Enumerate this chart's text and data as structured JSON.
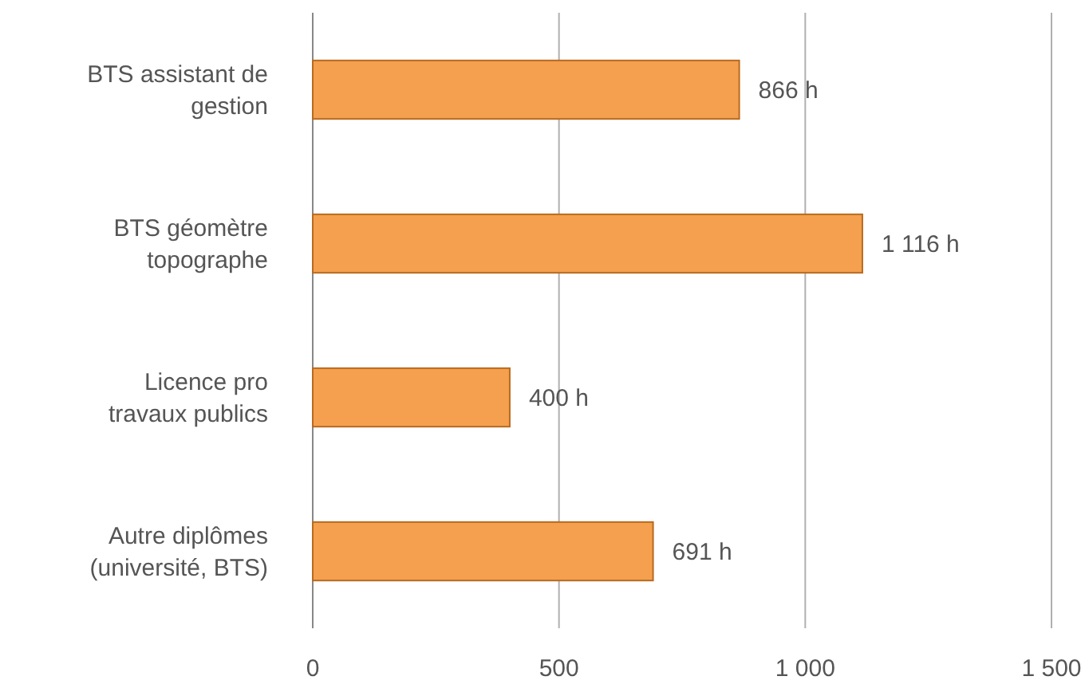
{
  "chart_data": {
    "type": "bar",
    "orientation": "horizontal",
    "categories": [
      "BTS assistant de gestion",
      "BTS géomètre topographe",
      "Licence pro travaux publics",
      "Autre diplômes (université, BTS)"
    ],
    "values": [
      866,
      1116,
      400,
      691
    ],
    "value_labels": [
      "866 h",
      "1 116 h",
      "400 h",
      "691 h"
    ],
    "color": "#f4a04e",
    "xlim": [
      0,
      1500
    ],
    "xticks": [
      0,
      500,
      {
        "value": 1000,
        "label": "1 000"
      },
      {
        "value": 1500,
        "label": "1 500"
      }
    ],
    "grid": "x"
  }
}
